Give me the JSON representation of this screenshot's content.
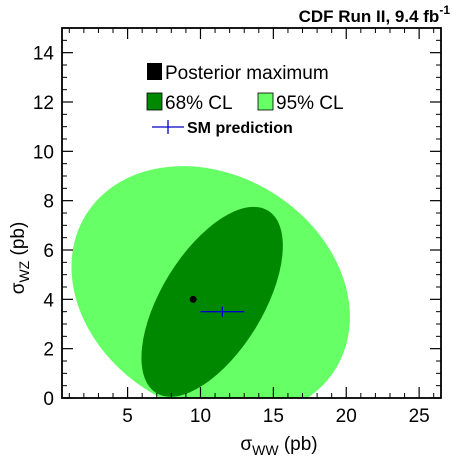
{
  "chart_data": {
    "type": "contour",
    "header": {
      "text": "CDF Run II, 9.4 fb",
      "superscript": "-1"
    },
    "xlabel": {
      "symbol": "σ",
      "subscript": "WW",
      "unit": " (pb)"
    },
    "ylabel": {
      "symbol": "σ",
      "subscript": "WZ",
      "unit": " (pb)"
    },
    "xlim": [
      0.5,
      26.5
    ],
    "ylim": [
      0,
      15
    ],
    "xticks": [
      5,
      10,
      15,
      20,
      25
    ],
    "yticks": [
      0,
      2,
      4,
      6,
      8,
      10,
      12,
      14
    ],
    "grid": false,
    "legend_position": "top-center",
    "legend": [
      {
        "label": "Posterior maximum"
      },
      {
        "label": "68% CL"
      },
      {
        "label": "95% CL"
      },
      {
        "label": "SM prediction"
      }
    ],
    "posterior_maximum": {
      "x": 9.5,
      "y": 4.0
    },
    "sm_prediction": {
      "x": 11.5,
      "y": 3.5,
      "x_err": 1.5,
      "y_err": 0.2
    },
    "cl68_region": {
      "center": {
        "x": 10.8,
        "y": 3.9
      },
      "x_range": [
        6.0,
        15.7
      ],
      "y_range": [
        0.4,
        8.1
      ]
    },
    "cl95_region": {
      "center": {
        "x": 10.7,
        "y": 4.3
      },
      "x_range": [
        1.5,
        20.6
      ],
      "y_range": [
        0,
        10.2
      ]
    },
    "colors": {
      "cl95": "#66ff66",
      "cl68": "#008800",
      "posterior_maximum": "#000000",
      "sm_prediction": "#0000cc"
    }
  }
}
